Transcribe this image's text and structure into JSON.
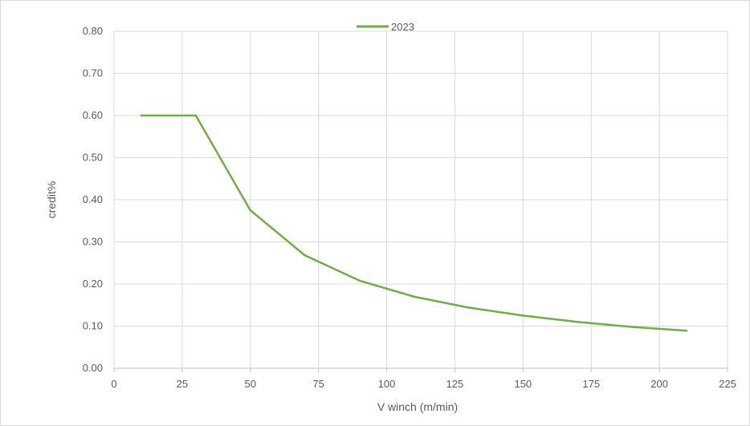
{
  "chart_data": {
    "type": "line",
    "title": "",
    "xlabel": "V winch (m/min)",
    "ylabel": "credit%",
    "xlim": [
      0,
      225
    ],
    "ylim": [
      0,
      0.8
    ],
    "x_ticks": [
      "0",
      "25",
      "50",
      "75",
      "100",
      "125",
      "150",
      "175",
      "200",
      "225"
    ],
    "y_ticks": [
      "0.00",
      "0.10",
      "0.20",
      "0.30",
      "0.40",
      "0.50",
      "0.60",
      "0.70",
      "0.80"
    ],
    "grid": true,
    "legend_position": "top",
    "series": [
      {
        "name": "2023",
        "color": "#70ad47",
        "x": [
          10,
          30,
          50,
          70,
          90,
          110,
          130,
          150,
          170,
          190,
          210
        ],
        "y": [
          0.6,
          0.6,
          0.375,
          0.268,
          0.208,
          0.17,
          0.144,
          0.125,
          0.11,
          0.098,
          0.089
        ]
      }
    ]
  }
}
